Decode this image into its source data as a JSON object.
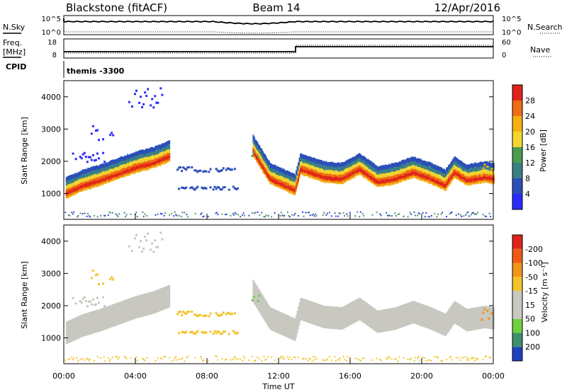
{
  "header": {
    "station": "Blackstone (fitACF)",
    "beam": "Beam 14",
    "date": "12/Apr/2016"
  },
  "panels_top": {
    "nsky_label": "N.Sky",
    "nsearch_label": "N.Search",
    "noise_ticks": [
      "10^5",
      "10^0"
    ],
    "freq_label": "Freq.",
    "freq_unit": "[MHz]",
    "freq_ticks": [
      "18",
      "8"
    ],
    "nave_label": "Nave",
    "nave_ticks": [
      "60",
      "0"
    ],
    "cpid_label": "CPID",
    "cpid_value": "themis -3300"
  },
  "chart_data": [
    {
      "type": "heatmap",
      "name": "power",
      "ylabel": "Slant Range [km]",
      "ylim": [
        200,
        4500
      ],
      "yticks": [
        1000,
        2000,
        3000,
        4000
      ],
      "xlim": [
        0,
        24
      ],
      "colorbar": {
        "label": "Power [dB]",
        "ticks": [
          "4",
          "8",
          "12",
          "16",
          "20",
          "24",
          "28"
        ],
        "colors": [
          "#2b2bff",
          "#2a4fb8",
          "#3b7f86",
          "#4c9a50",
          "#f2d62f",
          "#f4b013",
          "#ef6d14",
          "#e0231a"
        ]
      },
      "main_band": [
        [
          0.1,
          1050
        ],
        [
          1,
          1280
        ],
        [
          2,
          1450
        ],
        [
          3,
          1650
        ],
        [
          4,
          1850
        ],
        [
          5,
          2000
        ],
        [
          5.9,
          2200
        ],
        [
          10.5,
          2400
        ],
        [
          11.5,
          1500
        ],
        [
          12.9,
          1150
        ],
        [
          13.2,
          1800
        ],
        [
          14.5,
          1550
        ],
        [
          15.5,
          1500
        ],
        [
          16.5,
          1800
        ],
        [
          17.5,
          1400
        ],
        [
          18.5,
          1500
        ],
        [
          19.5,
          1700
        ],
        [
          20.5,
          1500
        ],
        [
          21.3,
          1300
        ],
        [
          21.8,
          1700
        ],
        [
          22.5,
          1450
        ],
        [
          23.5,
          1550
        ],
        [
          24,
          1500
        ]
      ]
    },
    {
      "type": "heatmap",
      "name": "velocity",
      "ylabel": "Slant Range [km]",
      "ylim": [
        200,
        4500
      ],
      "yticks": [
        1000,
        2000,
        3000,
        4000
      ],
      "xlim": [
        0,
        24
      ],
      "xlabel": "Time UT",
      "xticks": [
        "00:00",
        "04:00",
        "08:00",
        "12:00",
        "16:00",
        "20:00",
        "00:00"
      ],
      "colorbar": {
        "label": "Velocity [m s⁻¹]",
        "ticks": [
          "200",
          "100",
          "50",
          "15",
          "-15",
          "-50",
          "-100",
          "-200"
        ],
        "colors": [
          "#2040c0",
          "#3f8f6f",
          "#6fcf3f",
          "#c8c8c0",
          "#c8c8c0",
          "#f2c32a",
          "#f29418",
          "#ef5a15",
          "#e0231a"
        ]
      }
    }
  ]
}
